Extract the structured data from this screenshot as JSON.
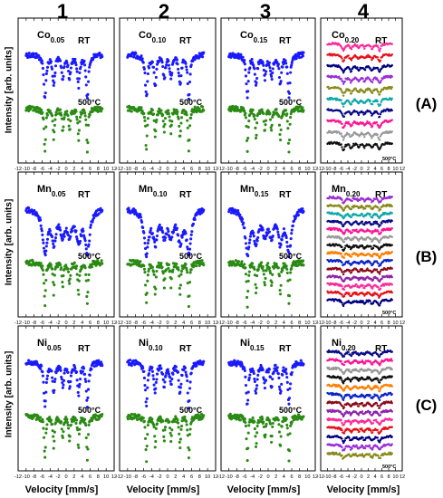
{
  "columns": [
    "1",
    "2",
    "3",
    "4"
  ],
  "rows": [
    "(A)",
    "(B)",
    "(C)"
  ],
  "ylabel": "Intensity [arb. units]",
  "xlabel": "Velocity [mm/s]",
  "colors": {
    "rt": "#1a1aff",
    "hot": "#2a8a14",
    "col4": [
      "#ff2b9a",
      "#e8121a",
      "#000080",
      "#9b2fd6",
      "#8a8a1c",
      "#10a8a8",
      "#0a0a8a",
      "#ff1493",
      "#999999",
      "#111111",
      "#ff7f00",
      "#0a25c8",
      "#8b0a1a",
      "#8e24aa"
    ]
  },
  "chart_data": {
    "type": "scatter",
    "xlabel": "Velocity [mm/s]",
    "ylabel": "Intensity [arb. units]",
    "xlim": [
      -12,
      12
    ],
    "xticks": [
      -12,
      -10,
      -8,
      -6,
      -4,
      -2,
      0,
      2,
      4,
      6,
      8,
      10,
      12
    ],
    "sextet_line_positions_mm_s": [
      -5.3,
      -3.1,
      -0.85,
      0.85,
      3.1,
      5.3
    ],
    "panels": [
      {
        "row": "(A)",
        "column": "1",
        "sample": "Co",
        "x_sub": "0.05",
        "labels": [
          "RT",
          "500°C"
        ],
        "series": [
          "RT",
          "500°C"
        ]
      },
      {
        "row": "(A)",
        "column": "2",
        "sample": "Co",
        "x_sub": "0.10",
        "labels": [
          "RT",
          "500°C"
        ],
        "series": [
          "RT",
          "500°C"
        ]
      },
      {
        "row": "(A)",
        "column": "3",
        "sample": "Co",
        "x_sub": "0.15",
        "labels": [
          "RT",
          "500°C"
        ],
        "series": [
          "RT",
          "500°C"
        ]
      },
      {
        "row": "(A)",
        "column": "4",
        "sample": "Co",
        "x_sub": "0.20",
        "labels": [
          "RT",
          "500°C"
        ],
        "stacked_spectra": 10
      },
      {
        "row": "(B)",
        "column": "1",
        "sample": "Mn",
        "x_sub": "0.05",
        "labels": [
          "RT",
          "500°C"
        ],
        "series": [
          "RT",
          "500°C"
        ]
      },
      {
        "row": "(B)",
        "column": "2",
        "sample": "Mn",
        "x_sub": "0.10",
        "labels": [
          "RT",
          "500°C"
        ],
        "series": [
          "RT",
          "500°C"
        ]
      },
      {
        "row": "(B)",
        "column": "3",
        "sample": "Mn",
        "x_sub": "0.15",
        "labels": [
          "RT",
          "500°C"
        ],
        "series": [
          "RT",
          "500°C"
        ]
      },
      {
        "row": "(B)",
        "column": "4",
        "sample": "Mn",
        "x_sub": "0.20",
        "labels": [
          "RT",
          "500°C"
        ],
        "stacked_spectra": 14
      },
      {
        "row": "(C)",
        "column": "1",
        "sample": "Ni",
        "x_sub": "0.05",
        "labels": [
          "RT",
          "500°C"
        ],
        "series": [
          "RT",
          "500°C"
        ]
      },
      {
        "row": "(C)",
        "column": "2",
        "sample": "Ni",
        "x_sub": "0.10",
        "labels": [
          "RT",
          "500°C"
        ],
        "series": [
          "RT",
          "500°C"
        ]
      },
      {
        "row": "(C)",
        "column": "3",
        "sample": "Ni",
        "x_sub": "0.15",
        "labels": [
          "RT",
          "500°C"
        ],
        "series": [
          "RT",
          "500°C"
        ]
      },
      {
        "row": "(C)",
        "column": "4",
        "sample": "Ni",
        "x_sub": "0.20",
        "labels": [
          "RT",
          "500°C"
        ],
        "stacked_spectra": 13
      }
    ]
  }
}
